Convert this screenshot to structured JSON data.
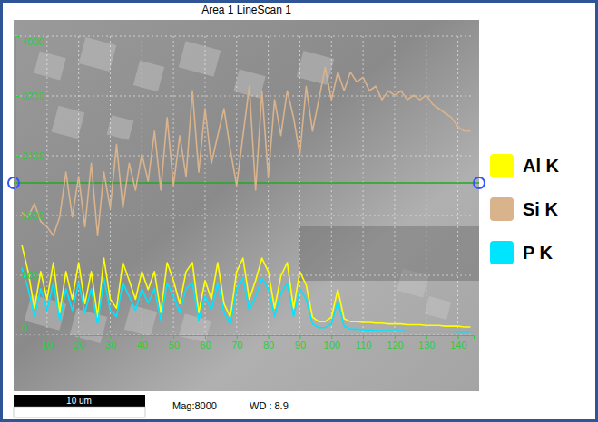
{
  "chart_data": {
    "type": "line",
    "title": "Area 1 LineScan 1",
    "annotations": [
      "10 um",
      "Mag:8000",
      "WD : 8.9"
    ],
    "x": [
      2,
      4,
      6,
      8,
      10,
      12,
      14,
      16,
      18,
      20,
      22,
      24,
      26,
      28,
      30,
      32,
      34,
      36,
      38,
      40,
      42,
      44,
      46,
      48,
      50,
      52,
      54,
      56,
      58,
      60,
      62,
      64,
      66,
      68,
      70,
      72,
      74,
      76,
      78,
      80,
      82,
      84,
      86,
      88,
      90,
      92,
      94,
      96,
      98,
      100,
      102,
      104,
      106,
      108,
      110,
      112,
      114,
      116,
      118,
      120,
      122,
      124,
      126,
      128,
      130,
      132,
      134,
      136,
      138,
      140,
      142,
      144
    ],
    "series": [
      {
        "name": "Al K",
        "color": "#ffff00",
        "values": [
          1210,
          850,
          360,
          850,
          480,
          970,
          300,
          850,
          480,
          970,
          420,
          850,
          240,
          1030,
          480,
          360,
          970,
          730,
          480,
          850,
          610,
          850,
          300,
          970,
          730,
          420,
          850,
          970,
          300,
          730,
          480,
          970,
          420,
          240,
          850,
          1030,
          480,
          730,
          1030,
          850,
          360,
          790,
          970,
          360,
          850,
          670,
          240,
          180,
          180,
          240,
          610,
          220,
          180,
          180,
          170,
          170,
          160,
          160,
          150,
          150,
          150,
          140,
          140,
          140,
          130,
          130,
          130,
          120,
          120,
          120,
          110,
          110
        ]
      },
      {
        "name": "Si K",
        "color": "#d9b38c",
        "values": [
          1640,
          1580,
          1760,
          1520,
          1450,
          1330,
          1580,
          2180,
          1580,
          2120,
          1450,
          2300,
          1330,
          2180,
          1700,
          2550,
          1700,
          2300,
          1940,
          2420,
          2060,
          2730,
          1940,
          2910,
          2000,
          2670,
          2120,
          3270,
          2180,
          3030,
          2300,
          2670,
          3030,
          2480,
          2000,
          2670,
          3330,
          1940,
          3270,
          2120,
          3150,
          2670,
          3270,
          2910,
          2420,
          3330,
          2730,
          3150,
          3580,
          3150,
          3520,
          3270,
          3520,
          3390,
          3450,
          3270,
          3330,
          3150,
          3270,
          3210,
          3270,
          3150,
          3210,
          3150,
          3210,
          3090,
          3030,
          2970,
          2910,
          2790,
          2730,
          2730
        ]
      },
      {
        "name": "P K",
        "color": "#00e5ff",
        "values": [
          900,
          620,
          250,
          620,
          330,
          700,
          200,
          620,
          330,
          700,
          300,
          620,
          150,
          760,
          330,
          250,
          700,
          520,
          330,
          620,
          430,
          620,
          200,
          700,
          520,
          300,
          620,
          700,
          200,
          520,
          330,
          700,
          300,
          150,
          620,
          760,
          330,
          520,
          760,
          620,
          250,
          560,
          700,
          250,
          620,
          480,
          150,
          100,
          100,
          150,
          450,
          120,
          80,
          80,
          70,
          70,
          60,
          60,
          60,
          60,
          60,
          50,
          50,
          50,
          50,
          50,
          50,
          50,
          50,
          40,
          40,
          40
        ]
      }
    ],
    "xlim": [
      0,
      145
    ],
    "xticks": [
      10,
      20,
      30,
      40,
      50,
      60,
      70,
      80,
      90,
      100,
      110,
      120,
      130,
      140
    ],
    "ylim": [
      0,
      4000
    ],
    "yticks": [
      0,
      800,
      1600,
      2400,
      3200,
      4000
    ],
    "grid": true,
    "legend": "right"
  }
}
